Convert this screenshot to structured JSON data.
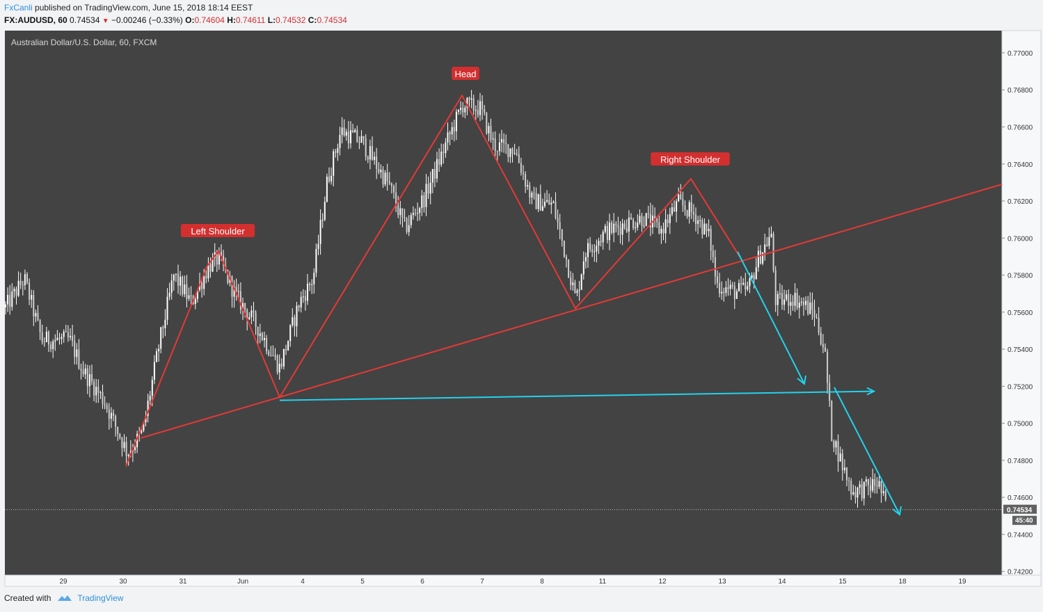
{
  "header": {
    "author": "FxCanli",
    "published_text": "published on TradingView.com, June 15, 2018 18:14 EEST"
  },
  "ohlc": {
    "symbol": "FX:AUDUSD, 60",
    "last": "0.74534",
    "change": "−0.00246 (−0.33%)",
    "o_label": "O:",
    "o": "0.74604",
    "h_label": "H:",
    "h": "0.74611",
    "l_label": "L:",
    "l": "0.74532",
    "c_label": "C:",
    "c": "0.74534"
  },
  "chart_data": {
    "type": "candlestick",
    "title": "Australian Dollar/U.S. Dollar, 60, FXCM",
    "price_axis": [
      "0.77000",
      "0.76800",
      "0.76600",
      "0.76400",
      "0.76200",
      "0.76000",
      "0.75800",
      "0.75600",
      "0.75400",
      "0.75200",
      "0.75000",
      "0.74800",
      "0.74600",
      "0.74400",
      "0.74200"
    ],
    "ylim": [
      0.7418,
      0.7712
    ],
    "time_axis": [
      "29",
      "30",
      "31",
      "Jun",
      "4",
      "5",
      "6",
      "7",
      "8",
      "11",
      "12",
      "13",
      "14",
      "15",
      "18",
      "19"
    ],
    "current_price_label": "0.74534",
    "countdown_label": "45:40",
    "current_price": 0.74534,
    "annotations": [
      {
        "text": "Left Shoulder",
        "price": 0.7594
      },
      {
        "text": "Head",
        "price": 0.7678
      },
      {
        "text": "Right Shoulder",
        "price": 0.7632
      }
    ],
    "path_points": [
      {
        "t": "30",
        "price": 0.7477
      },
      {
        "t": "31",
        "price": 0.7585
      },
      {
        "t": "1",
        "price": 0.7593
      },
      {
        "t": "Jun",
        "price": 0.7514
      },
      {
        "t": "6",
        "price": 0.7677
      },
      {
        "t": "8",
        "price": 0.7562
      },
      {
        "t": "12",
        "price": 0.7632
      },
      {
        "t": "13",
        "price": 0.759
      }
    ],
    "neckline": {
      "from": {
        "t": "30",
        "price": 0.7492
      },
      "to": {
        "t": "18",
        "price": 0.7629
      }
    },
    "support_line": {
      "price": 0.7515
    },
    "colors": {
      "background": "#434343",
      "candles": "#ffffff",
      "pattern": "#e53935",
      "projection": "#22d3ee",
      "label_bg": "#d32f2f"
    }
  },
  "footer": {
    "created_with": "Created with",
    "brand": "TradingView"
  }
}
